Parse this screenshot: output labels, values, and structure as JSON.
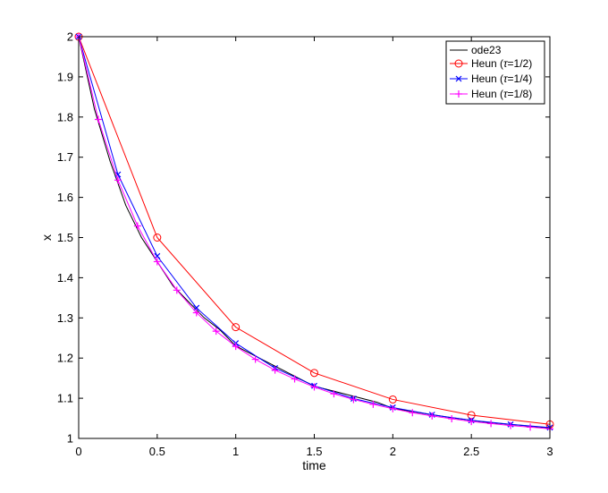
{
  "chart_data": {
    "type": "line",
    "title": "",
    "xlabel": "time",
    "ylabel": "x",
    "xlim": [
      0,
      3
    ],
    "ylim": [
      1,
      2
    ],
    "xticks": [
      0,
      0.5,
      1,
      1.5,
      2,
      2.5,
      3
    ],
    "yticks": [
      1,
      1.1,
      1.2,
      1.3,
      1.4,
      1.5,
      1.6,
      1.7,
      1.8,
      1.9,
      2
    ],
    "xtick_labels": [
      "0",
      "0.5",
      "1",
      "1.5",
      "2",
      "2.5",
      "3"
    ],
    "ytick_labels": [
      "1",
      "1.1",
      "1.2",
      "1.3",
      "1.4",
      "1.5",
      "1.6",
      "1.7",
      "1.8",
      "1.9",
      "2"
    ],
    "grid": false,
    "legend_position": "top-right",
    "legend": [
      {
        "prefix": "ode23",
        "tau": ""
      },
      {
        "prefix": "Heun  (",
        "tau": "1/2"
      },
      {
        "prefix": "Heun  (",
        "tau": "1/4"
      },
      {
        "prefix": "Heun  (",
        "tau": "1/8"
      }
    ],
    "series": [
      {
        "color": "#000000",
        "marker": "none",
        "x": [
          0,
          0.1,
          0.2,
          0.3,
          0.4,
          0.5,
          0.6,
          0.7,
          0.8,
          0.9,
          1.0,
          1.1,
          1.2,
          1.3,
          1.4,
          1.5,
          1.6,
          1.7,
          1.8,
          1.9,
          2.0,
          2.2,
          2.4,
          2.6,
          2.8,
          3.0
        ],
        "y": [
          2.0,
          1.82,
          1.69,
          1.58,
          1.5,
          1.44,
          1.38,
          1.34,
          1.3,
          1.27,
          1.23,
          1.21,
          1.19,
          1.17,
          1.15,
          1.13,
          1.12,
          1.11,
          1.1,
          1.09,
          1.075,
          1.062,
          1.05,
          1.04,
          1.033,
          1.026
        ]
      },
      {
        "color": "#ff0000",
        "marker": "circle",
        "x": [
          0,
          0.5,
          1.0,
          1.5,
          2.0,
          2.5,
          3.0
        ],
        "y": [
          2.0,
          1.5,
          1.277,
          1.163,
          1.097,
          1.058,
          1.035
        ]
      },
      {
        "color": "#0000ff",
        "marker": "x",
        "x": [
          0,
          0.25,
          0.5,
          0.75,
          1.0,
          1.25,
          1.5,
          1.75,
          2.0,
          2.25,
          2.5,
          2.75,
          3.0
        ],
        "y": [
          2.0,
          1.657,
          1.454,
          1.325,
          1.237,
          1.175,
          1.131,
          1.099,
          1.077,
          1.059,
          1.045,
          1.035,
          1.027
        ]
      },
      {
        "color": "#ff00ff",
        "marker": "plus",
        "x": [
          0,
          0.125,
          0.25,
          0.375,
          0.5,
          0.625,
          0.75,
          0.875,
          1.0,
          1.125,
          1.25,
          1.375,
          1.5,
          1.625,
          1.75,
          1.875,
          2.0,
          2.125,
          2.25,
          2.375,
          2.5,
          2.625,
          2.75,
          2.875,
          3.0
        ],
        "y": [
          2.0,
          1.794,
          1.643,
          1.529,
          1.44,
          1.369,
          1.313,
          1.267,
          1.229,
          1.197,
          1.17,
          1.148,
          1.128,
          1.111,
          1.097,
          1.085,
          1.074,
          1.064,
          1.056,
          1.049,
          1.042,
          1.037,
          1.032,
          1.028,
          1.024
        ]
      }
    ]
  }
}
